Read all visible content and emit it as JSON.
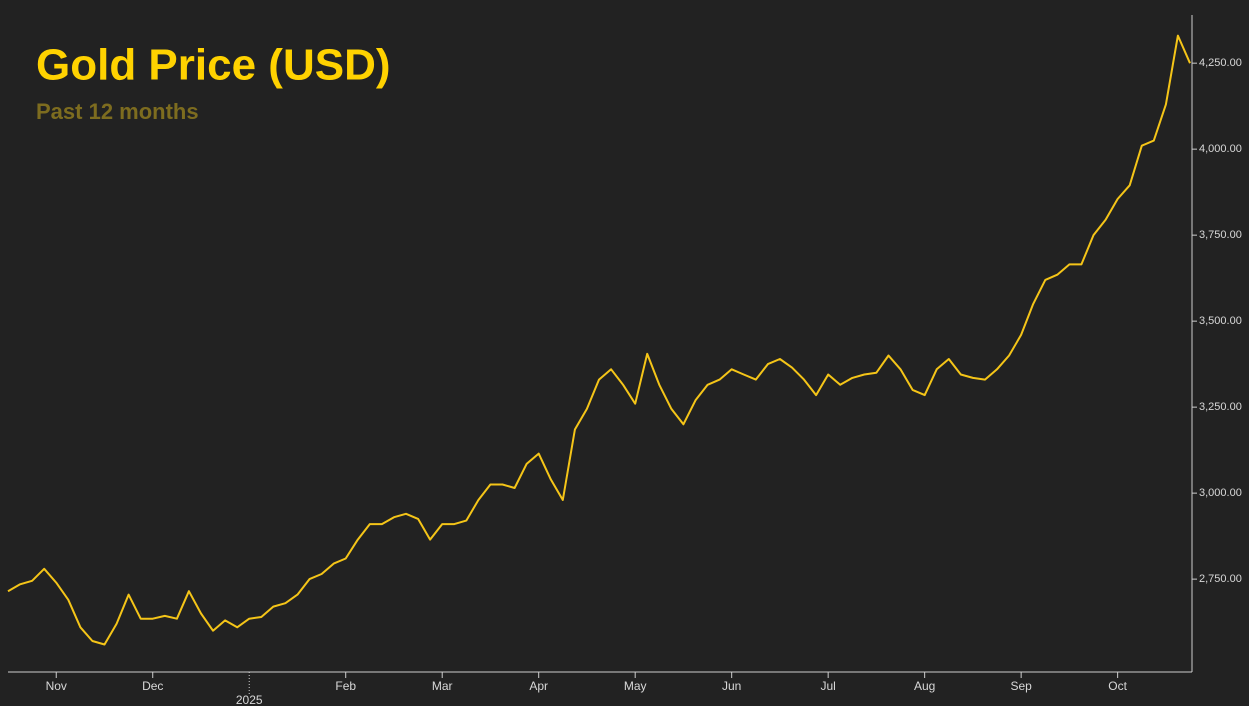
{
  "chart_data": {
    "type": "line",
    "title": "Gold Price (USD)",
    "subtitle": "Past 12 months",
    "color": "#f5c518",
    "categories": [
      null,
      null,
      null,
      null,
      "Nov",
      null,
      null,
      null,
      null,
      null,
      null,
      null,
      "Dec",
      null,
      null,
      null,
      null,
      null,
      null,
      null,
      "2025",
      null,
      null,
      null,
      null,
      null,
      null,
      null,
      "Feb",
      null,
      null,
      null,
      null,
      null,
      null,
      null,
      "Mar",
      null,
      null,
      null,
      null,
      null,
      null,
      null,
      "Apr",
      null,
      null,
      null,
      null,
      null,
      null,
      null,
      "May",
      null,
      null,
      null,
      null,
      null,
      null,
      null,
      "Jun",
      null,
      null,
      null,
      null,
      null,
      null,
      null,
      "Jul",
      null,
      null,
      null,
      null,
      null,
      null,
      null,
      "Aug",
      null,
      null,
      null,
      null,
      null,
      null,
      null,
      "Sep",
      null,
      null,
      null,
      null,
      null,
      null,
      null,
      "Oct",
      null,
      null,
      null,
      null,
      null,
      null
    ],
    "values": [
      2715,
      2735,
      2745,
      2780,
      2740,
      2690,
      2610,
      2570,
      2560,
      2620,
      2705,
      2635,
      2635,
      2643,
      2635,
      2715,
      2650,
      2600,
      2630,
      2610,
      2635,
      2640,
      2670,
      2680,
      2705,
      2750,
      2765,
      2795,
      2810,
      2865,
      2910,
      2910,
      2930,
      2940,
      2925,
      2865,
      2910,
      2910,
      2920,
      2980,
      3025,
      3025,
      3015,
      3085,
      3115,
      3040,
      2980,
      3185,
      3245,
      3330,
      3360,
      3315,
      3260,
      3405,
      3315,
      3245,
      3200,
      3270,
      3315,
      3330,
      3360,
      3345,
      3330,
      3375,
      3390,
      3365,
      3330,
      3285,
      3345,
      3315,
      3335,
      3345,
      3350,
      3400,
      3360,
      3300,
      3285,
      3360,
      3390,
      3345,
      3335,
      3330,
      3360,
      3400,
      3460,
      3550,
      3620,
      3635,
      3665,
      3665,
      3750,
      3795,
      3855,
      3895,
      4010,
      4025,
      4130,
      4330,
      4250
    ],
    "ylim": [
      2480,
      4390
    ],
    "yticks": [
      {
        "value": 2750,
        "label": "2,750.00"
      },
      {
        "value": 3000,
        "label": "3,000.00"
      },
      {
        "value": 3250,
        "label": "3,250.00"
      },
      {
        "value": 3500,
        "label": "3,500.00"
      },
      {
        "value": 3750,
        "label": "3,750.00"
      },
      {
        "value": 4000,
        "label": "4,000.00"
      },
      {
        "value": 4250,
        "label": "4,250.00"
      }
    ],
    "grid": false
  }
}
